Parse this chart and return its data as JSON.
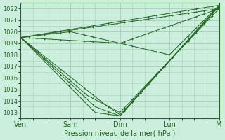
{
  "title": "",
  "xlabel": "Pression niveau de la mer( hPa )",
  "ylabel": "",
  "bg_color": "#cceedd",
  "grid_color": "#aaccbb",
  "line_color": "#226622",
  "marker_color": "#226622",
  "ylim": [
    1012.5,
    1022.5
  ],
  "yticks": [
    1013,
    1014,
    1015,
    1016,
    1017,
    1018,
    1019,
    1020,
    1021,
    1022
  ],
  "xtick_labels": [
    "Ven",
    "Sam",
    "Dim",
    "Lun",
    "M"
  ],
  "xtick_positions": [
    0,
    48,
    96,
    144,
    192
  ],
  "series": [
    [
      [
        0,
        192
      ],
      [
        1019.5,
        1022.3
      ]
    ],
    [
      [
        0,
        192
      ],
      [
        1019.5,
        1022.0
      ]
    ],
    [
      [
        0,
        96,
        144,
        192
      ],
      [
        1019.5,
        1019.0,
        1018.0,
        1022.3
      ]
    ],
    [
      [
        0,
        48,
        96,
        192
      ],
      [
        1019.5,
        1020.0,
        1019.0,
        1022.0
      ]
    ],
    [
      [
        0,
        72,
        96,
        192
      ],
      [
        1019.5,
        1013.5,
        1012.7,
        1022.2
      ]
    ],
    [
      [
        0,
        72,
        96,
        192
      ],
      [
        1019.5,
        1013.0,
        1012.7,
        1022.3
      ]
    ],
    [
      [
        0,
        64,
        96,
        192
      ],
      [
        1019.5,
        1014.5,
        1013.0,
        1022.0
      ]
    ],
    [
      [
        0,
        80,
        96,
        192
      ],
      [
        1019.5,
        1013.8,
        1012.8,
        1022.2
      ]
    ]
  ],
  "x_total": 192
}
